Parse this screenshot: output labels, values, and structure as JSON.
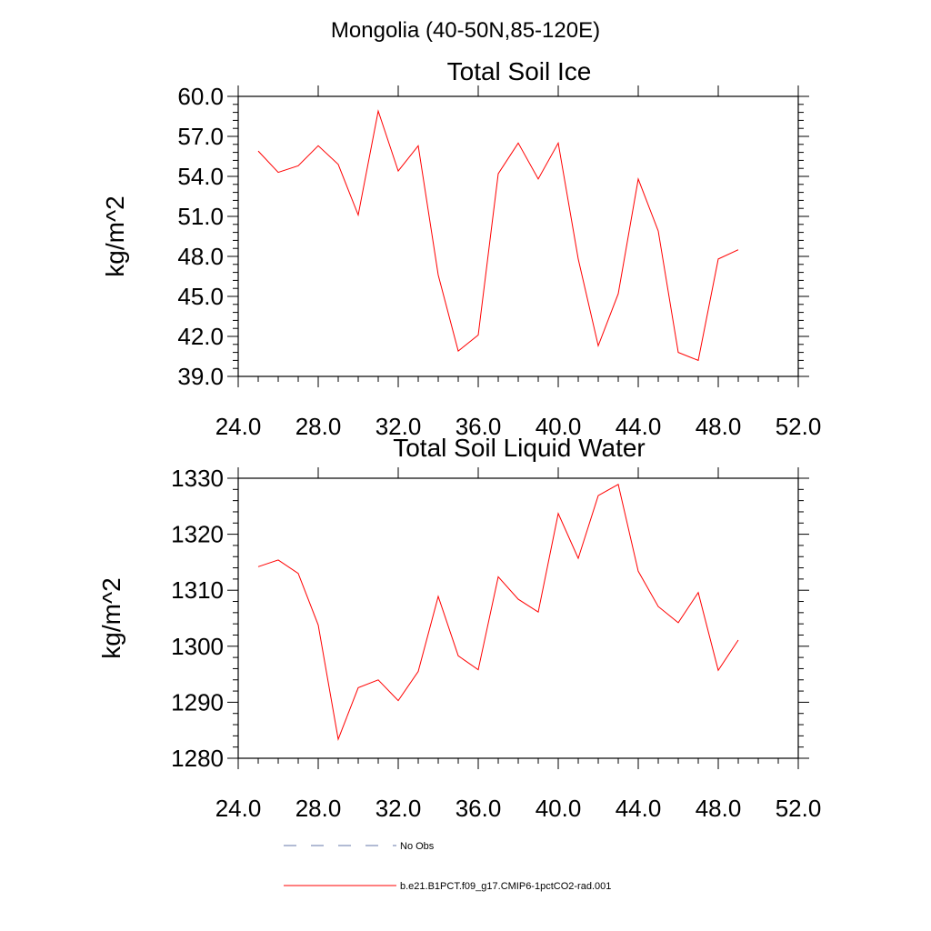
{
  "figure": {
    "title": "Mongolia (40-50N,85-120E)"
  },
  "chart_data": [
    {
      "type": "line",
      "title": "Total Soil Ice",
      "ylabel": "kg/m^2",
      "xlabel": "",
      "xlim": [
        24,
        52
      ],
      "ylim": [
        39,
        60
      ],
      "x_ticks": [
        24,
        28,
        32,
        36,
        40,
        44,
        48,
        52
      ],
      "x_tick_labels": [
        "24.0",
        "28.0",
        "32.0",
        "36.0",
        "40.0",
        "44.0",
        "48.0",
        "52.0"
      ],
      "y_ticks": [
        39,
        42,
        45,
        48,
        51,
        54,
        57,
        60
      ],
      "y_tick_labels": [
        "39.0",
        "42.0",
        "45.0",
        "48.0",
        "51.0",
        "54.0",
        "57.0",
        "60.0"
      ],
      "series": [
        {
          "name": "b.e21.B1PCT.f09_g17.CMIP6-1pctCO2-rad.001",
          "color": "#ff0000",
          "x": [
            25,
            26,
            27,
            28,
            29,
            30,
            31,
            32,
            33,
            34,
            35,
            36,
            37,
            38,
            39,
            40,
            41,
            42,
            43,
            44,
            45,
            46,
            47,
            48,
            49
          ],
          "y": [
            55.9,
            54.3,
            54.8,
            56.3,
            54.9,
            51.1,
            58.9,
            54.4,
            56.3,
            46.6,
            40.9,
            42.1,
            54.2,
            56.5,
            53.8,
            56.5,
            47.8,
            41.3,
            45.2,
            53.8,
            49.9,
            40.8,
            40.2,
            47.8,
            48.5
          ]
        }
      ]
    },
    {
      "type": "line",
      "title": "Total Soil Liquid Water",
      "ylabel": "kg/m^2",
      "xlabel": "",
      "xlim": [
        24,
        52
      ],
      "ylim": [
        1280,
        1330
      ],
      "x_ticks": [
        24,
        28,
        32,
        36,
        40,
        44,
        48,
        52
      ],
      "x_tick_labels": [
        "24.0",
        "28.0",
        "32.0",
        "36.0",
        "40.0",
        "44.0",
        "48.0",
        "52.0"
      ],
      "y_ticks": [
        1280,
        1290,
        1300,
        1310,
        1320,
        1330
      ],
      "y_tick_labels": [
        "1280",
        "1290",
        "1300",
        "1310",
        "1320",
        "1330"
      ],
      "series": [
        {
          "name": "b.e21.B1PCT.f09_g17.CMIP6-1pctCO2-rad.001",
          "color": "#ff0000",
          "x": [
            25,
            26,
            27,
            28,
            29,
            30,
            31,
            32,
            33,
            34,
            35,
            36,
            37,
            38,
            39,
            40,
            41,
            42,
            43,
            44,
            45,
            46,
            47,
            48,
            49
          ],
          "y": [
            1314.2,
            1315.4,
            1313.0,
            1303.8,
            1283.4,
            1292.6,
            1294.0,
            1290.3,
            1295.5,
            1308.9,
            1298.3,
            1295.8,
            1312.4,
            1308.4,
            1306.1,
            1323.7,
            1315.7,
            1326.9,
            1328.9,
            1313.4,
            1307.1,
            1304.2,
            1309.6,
            1295.7,
            1301.1
          ]
        }
      ]
    }
  ],
  "legend": {
    "items": [
      {
        "label": "No Obs",
        "color": "#6677aa",
        "style": "dashed"
      },
      {
        "label": "b.e21.B1PCT.f09_g17.CMIP6-1pctCO2-rad.001",
        "color": "#ff0000",
        "style": "solid"
      }
    ]
  }
}
